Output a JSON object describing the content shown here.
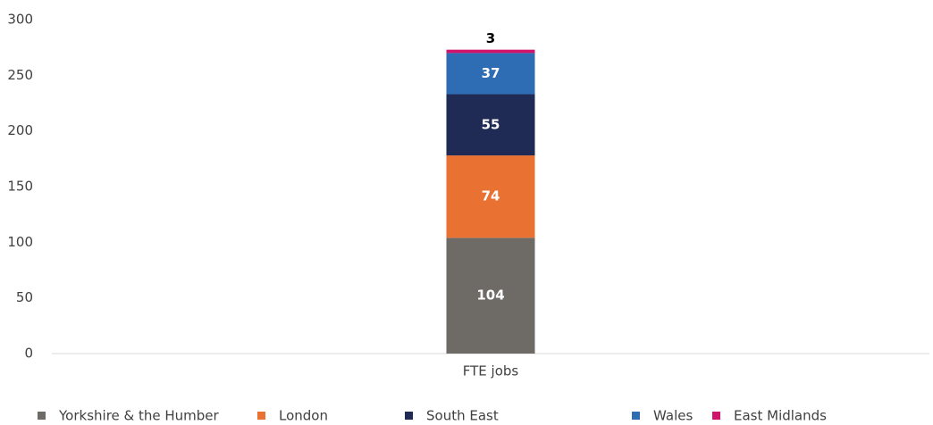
{
  "chart_data": {
    "type": "stacked_bar",
    "categories": [
      "FTE jobs"
    ],
    "series": [
      {
        "name": "Yorkshire & the Humber",
        "color": "#6e6a66",
        "values": [
          104
        ]
      },
      {
        "name": "London",
        "color": "#e97132",
        "values": [
          74
        ]
      },
      {
        "name": "South East",
        "color": "#1f2a55",
        "values": [
          55
        ]
      },
      {
        "name": "Wales",
        "color": "#2e6db4",
        "values": [
          37
        ]
      },
      {
        "name": "East Midlands",
        "color": "#d0136b",
        "values": [
          3
        ]
      }
    ],
    "ylim": [
      0,
      300
    ],
    "yticks": [
      0,
      50,
      100,
      150,
      200,
      250,
      300
    ],
    "grid": false,
    "legend": "bottom"
  }
}
